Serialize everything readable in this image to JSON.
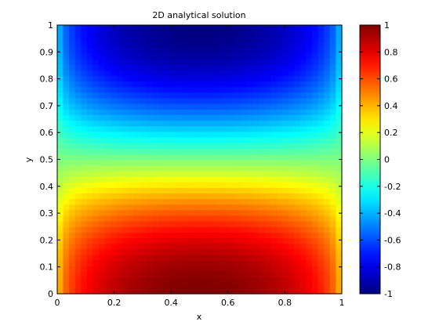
{
  "chart_data": {
    "type": "heatmap",
    "title": "2D analytical solution",
    "xlabel": "x",
    "ylabel": "y",
    "xlim": [
      0,
      1
    ],
    "ylim": [
      0,
      1
    ],
    "x_ticks": [
      "0",
      "0.2",
      "0.4",
      "0.6",
      "0.8",
      "1"
    ],
    "y_ticks": [
      "0",
      "0.1",
      "0.2",
      "0.3",
      "0.4",
      "0.5",
      "0.6",
      "0.7",
      "0.8",
      "0.9",
      "1"
    ],
    "colorbar": {
      "colormap": "jet",
      "range": [
        -1,
        1
      ],
      "ticks": [
        "-1",
        "-0.8",
        "-0.6",
        "-0.4",
        "-0.2",
        "0",
        "0.2",
        "0.4",
        "0.6",
        "0.8",
        "1"
      ]
    },
    "grid_resolution": 48,
    "field": {
      "description_of_values": "u(x,y) = sin(pi*x)^(1/4) * cos(pi*y)",
      "min": -1,
      "max": 1
    },
    "grid": false,
    "legend": "colorbar-right"
  }
}
